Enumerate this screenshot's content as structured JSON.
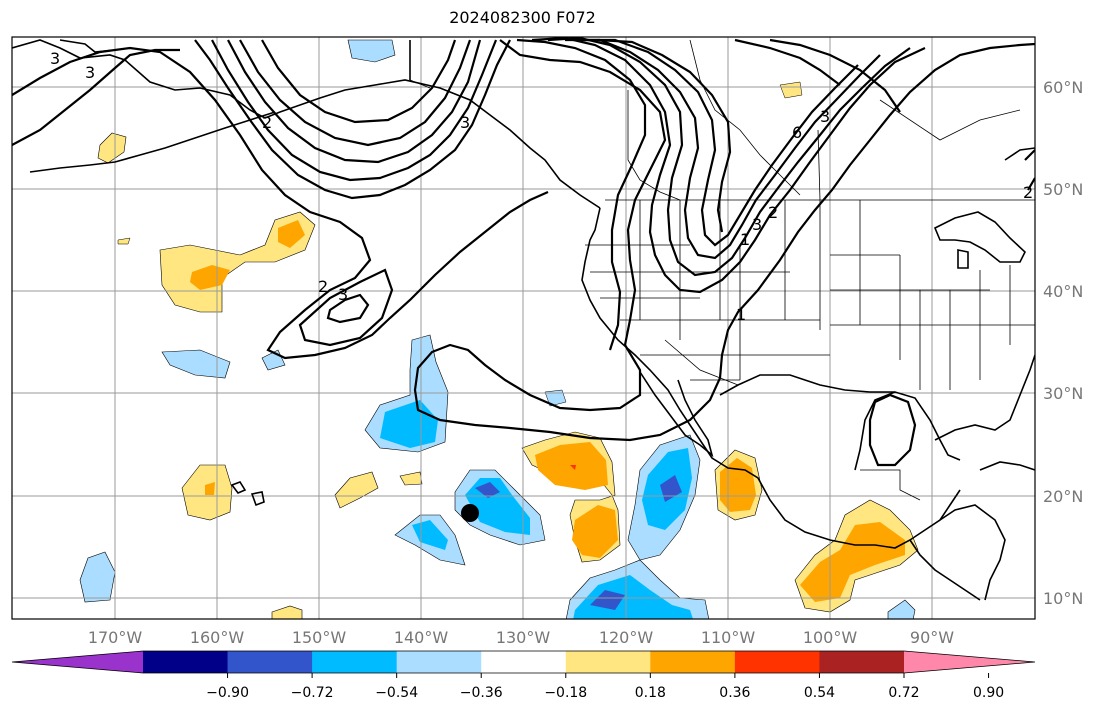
{
  "title": "2024082300 F072",
  "map": {
    "lon_labels": [
      "170°W",
      "160°W",
      "150°W",
      "140°W",
      "130°W",
      "120°W",
      "110°W",
      "100°W",
      "90°W"
    ],
    "lat_labels": [
      "60°N",
      "50°N",
      "40°N",
      "30°N",
      "20°N",
      "10°N"
    ],
    "contour_labels": [
      "3",
      "3",
      "2",
      "3",
      "2",
      "3",
      "6",
      "3",
      "1",
      "2",
      "3",
      "1",
      "2"
    ],
    "marker": "storm-center-dot",
    "grid": true
  },
  "colorbar": {
    "ticks": [
      "−0.90",
      "−0.72",
      "−0.54",
      "−0.36",
      "−0.18",
      "0.18",
      "0.36",
      "0.54",
      "0.72",
      "0.90"
    ],
    "colors": [
      "#9933cc",
      "#000088",
      "#3355cc",
      "#00bbff",
      "#aaddff",
      "#ffffff",
      "#ffe680",
      "#ffa500",
      "#ff3300",
      "#aa2222",
      "#ff88aa"
    ]
  }
}
